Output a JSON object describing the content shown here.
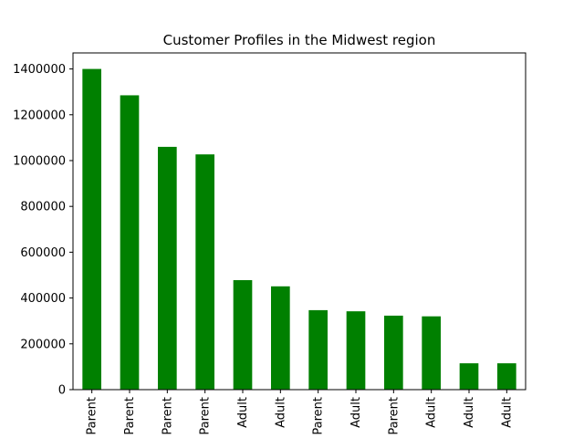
{
  "chart_data": {
    "type": "bar",
    "title": "Customer Profiles in the Midwest region",
    "xlabel": "",
    "ylabel": "",
    "ylim": [
      0,
      1470000
    ],
    "yticks": [
      0,
      200000,
      400000,
      600000,
      800000,
      1000000,
      1200000,
      1400000
    ],
    "ytick_labels": [
      "0",
      "200000",
      "400000",
      "600000",
      "800000",
      "1000000",
      "1200000",
      "1400000"
    ],
    "categories": [
      "Parent",
      "Parent",
      "Parent",
      "Parent",
      "Adult",
      "Adult",
      "Parent",
      "Adult",
      "Parent",
      "Adult",
      "Adult",
      "Adult"
    ],
    "values": [
      1400000,
      1285000,
      1060000,
      1027000,
      478000,
      451000,
      347000,
      342000,
      323000,
      320000,
      115000,
      115000
    ],
    "grid": false,
    "bar_color": "#008000"
  }
}
